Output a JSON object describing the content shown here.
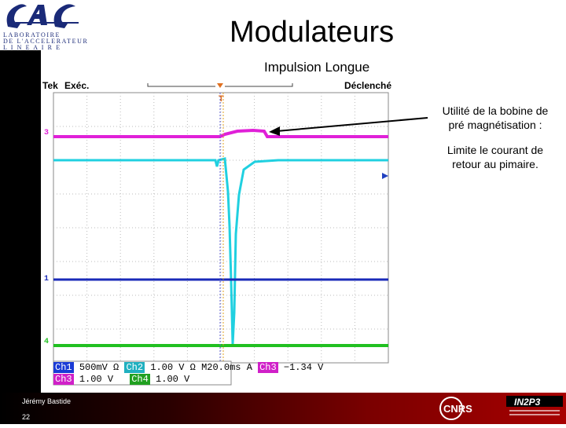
{
  "header": {
    "logo_text": "LAL",
    "logo_line1": "LABORATOIRE",
    "logo_line2": "DE L'ACCELERATEUR",
    "logo_line3": "L I N E A I R E",
    "title": "Modulateurs"
  },
  "slide": {
    "subtitle": "Impulsion Longue",
    "note1_line1": "Utilité de la bobine de",
    "note1_line2": "pré magnétisation :",
    "note2_line1": "Limite le courant de",
    "note2_line2": "retour au pimaire."
  },
  "scope": {
    "brand": "Tek",
    "mode": "Exéc.",
    "status": "Déclenché",
    "ch_labels": [
      "3",
      "1",
      "4"
    ],
    "trace_colors": {
      "ch3": "#e020d8",
      "ch2": "#20d0e0",
      "ch1": "#1a2ab8",
      "ch4": "#20c020"
    },
    "readout_row1": {
      "ch1": "Ch1",
      "ch1_val": "500mV Ω",
      "ch2": "Ch2",
      "ch2_val": "1.00 V Ω",
      "time": "M20.0ms",
      "trig": "A",
      "trig_ch": "Ch3",
      "trig_val": "−1.34 V"
    },
    "readout_row2": {
      "ch3": "Ch3",
      "ch3_val": "1.00 V",
      "ch4": "Ch4",
      "ch4_val": "1.00 V"
    }
  },
  "footer": {
    "author": "Jérémy Bastide",
    "page": "22",
    "cnrs_text": "CNRS",
    "in2p3_text": "IN2P3"
  }
}
